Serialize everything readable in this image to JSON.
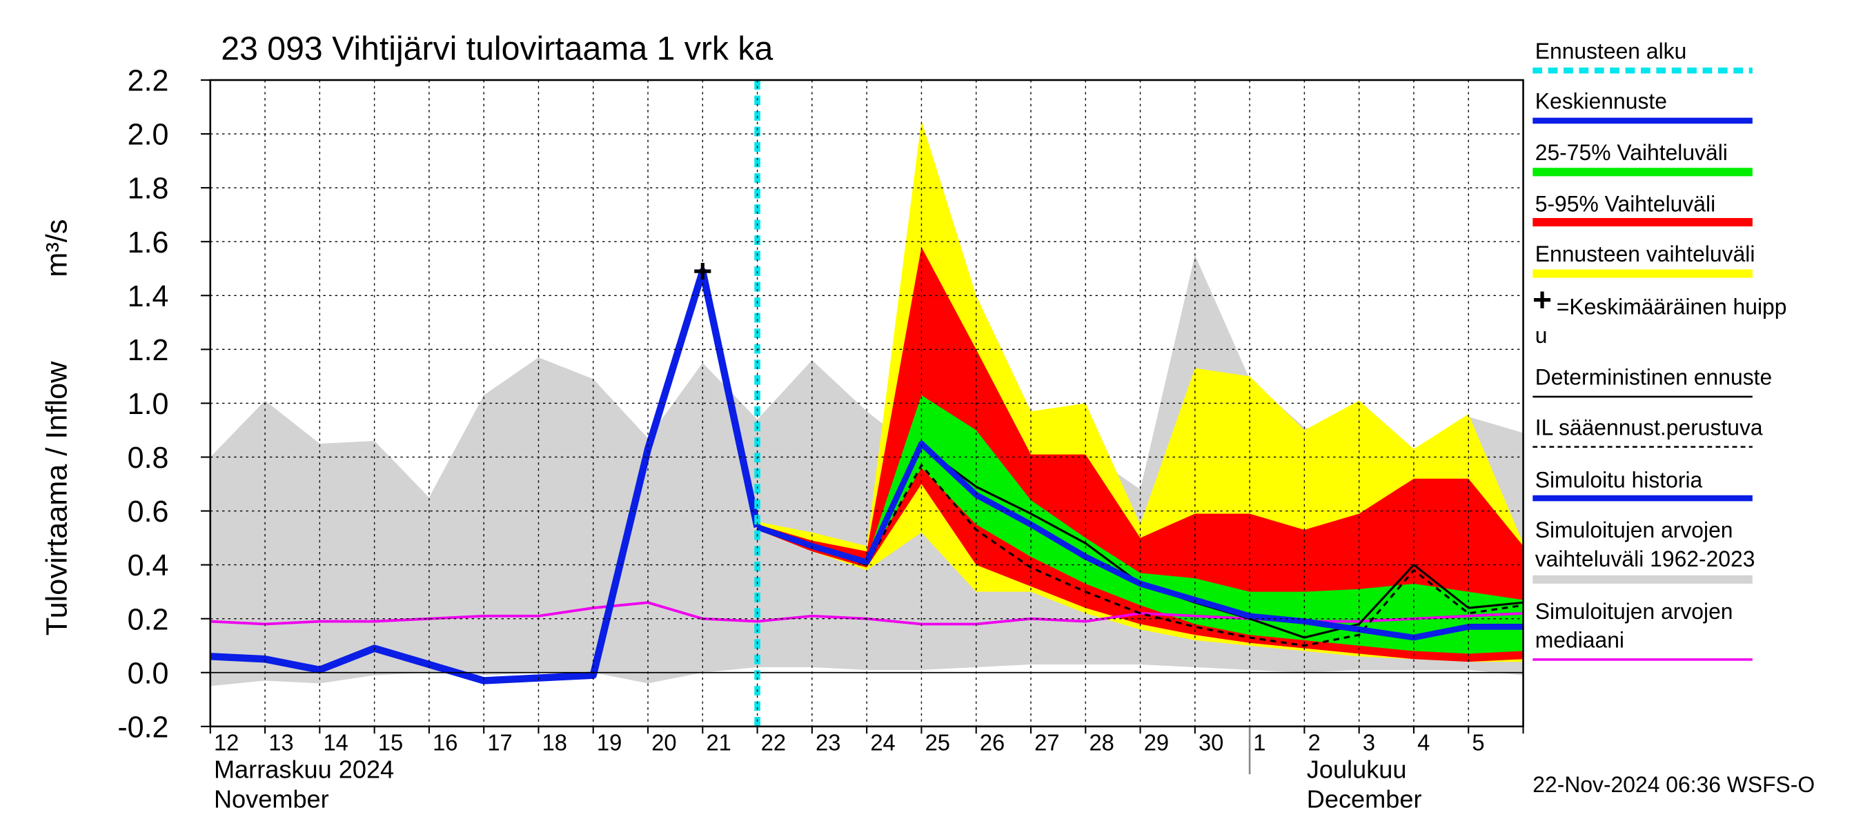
{
  "chart_data": {
    "type": "line",
    "title": "23 093 Vihtijärvi tulovirtaama 1 vrk ka",
    "y_label": "Tulovirtaama / Inflow",
    "y_unit": "m³/s",
    "months": [
      {
        "fi": "Marraskuu 2024",
        "en": "November",
        "x": 0
      },
      {
        "fi": "Joulukuu",
        "en": "December",
        "x": 19
      }
    ],
    "timestamp": "22-Nov-2024 06:36 WSFS-O",
    "categories": [
      "12",
      "13",
      "14",
      "15",
      "16",
      "17",
      "18",
      "19",
      "20",
      "21",
      "22",
      "23",
      "24",
      "25",
      "26",
      "27",
      "28",
      "29",
      "30",
      "1",
      "2",
      "3",
      "4",
      "5"
    ],
    "x": [
      0,
      1,
      2,
      3,
      4,
      5,
      6,
      7,
      8,
      9,
      10,
      11,
      12,
      13,
      14,
      15,
      16,
      17,
      18,
      19,
      20,
      21,
      22,
      23,
      24
    ],
    "xlim": [
      0,
      24
    ],
    "ylim": [
      -0.2,
      2.2
    ],
    "yticks": [
      -0.2,
      {
        "value": 0,
        "label": "0.0"
      },
      0.2,
      0.4,
      0.6,
      0.8,
      {
        "value": 1,
        "label": "1.0"
      },
      1.2,
      1.4,
      1.6,
      1.8,
      {
        "value": 2,
        "label": "2.0"
      },
      2.2
    ],
    "grid": true,
    "forecast_start": {
      "name": "Ennusteen alku",
      "color": "#00e5ee",
      "x": 10
    },
    "peak": {
      "name": "=Keskimääräinen huipp",
      "name2": "u",
      "x": 9,
      "value": 1.49
    },
    "series": [
      {
        "name": "Keskiennuste",
        "color": "#0a1ee6",
        "kind": "line",
        "values": [
          null,
          null,
          null,
          null,
          null,
          null,
          null,
          null,
          null,
          null,
          0.54,
          0.47,
          0.41,
          0.85,
          0.66,
          0.55,
          0.43,
          0.33,
          0.27,
          0.21,
          0.19,
          0.16,
          0.13,
          0.17,
          0.17
        ]
      },
      {
        "name": "25-75% Vaihteluväli",
        "color": "#00ee00",
        "kind": "band",
        "high": [
          null,
          null,
          null,
          null,
          null,
          null,
          null,
          null,
          null,
          null,
          0.54,
          0.48,
          0.42,
          1.03,
          0.9,
          0.64,
          0.5,
          0.37,
          0.35,
          0.3,
          0.3,
          0.31,
          0.33,
          0.3,
          0.27
        ],
        "low": [
          null,
          null,
          null,
          null,
          null,
          null,
          null,
          null,
          null,
          null,
          0.54,
          0.47,
          0.41,
          0.76,
          0.55,
          0.43,
          0.33,
          0.25,
          0.18,
          0.14,
          0.12,
          0.1,
          0.08,
          0.07,
          0.08
        ]
      },
      {
        "name": "5-95% Vaihteluväli",
        "color": "#ff0000",
        "kind": "band",
        "high": [
          null,
          null,
          null,
          null,
          null,
          null,
          null,
          null,
          null,
          null,
          0.55,
          0.49,
          0.45,
          1.58,
          1.2,
          0.81,
          0.81,
          0.5,
          0.59,
          0.59,
          0.53,
          0.59,
          0.72,
          0.72,
          0.47
        ],
        "low": [
          null,
          null,
          null,
          null,
          null,
          null,
          null,
          null,
          null,
          null,
          0.53,
          0.45,
          0.39,
          0.7,
          0.4,
          0.32,
          0.24,
          0.18,
          0.14,
          0.11,
          0.09,
          0.07,
          0.05,
          0.04,
          0.05
        ]
      },
      {
        "name": "Ennusteen vaihteluväli",
        "color": "#ffff00",
        "kind": "band",
        "high": [
          null,
          null,
          null,
          null,
          null,
          null,
          null,
          null,
          null,
          null,
          0.56,
          0.52,
          0.47,
          2.05,
          1.4,
          0.97,
          1.0,
          0.55,
          1.13,
          1.1,
          0.9,
          1.01,
          0.83,
          0.96,
          0.48
        ],
        "low": [
          null,
          null,
          null,
          null,
          null,
          null,
          null,
          null,
          null,
          null,
          0.53,
          0.45,
          0.38,
          0.52,
          0.3,
          0.3,
          0.22,
          0.16,
          0.12,
          0.1,
          0.08,
          0.06,
          0.05,
          0.04,
          0.04
        ]
      },
      {
        "name": "Deterministinen ennuste",
        "color": "#000000",
        "kind": "line",
        "values": [
          null,
          null,
          null,
          null,
          null,
          null,
          null,
          null,
          null,
          null,
          0.54,
          0.47,
          0.41,
          0.84,
          0.69,
          0.59,
          0.48,
          0.33,
          0.26,
          0.2,
          0.13,
          0.18,
          0.4,
          0.24,
          0.26
        ]
      },
      {
        "name": "IL sääennust.perustuva",
        "color": "#000000",
        "kind": "line",
        "dash": true,
        "values": [
          null,
          null,
          null,
          null,
          null,
          null,
          null,
          null,
          null,
          null,
          0.54,
          0.47,
          0.4,
          0.77,
          0.53,
          0.39,
          0.3,
          0.22,
          0.17,
          0.13,
          0.1,
          0.14,
          0.38,
          0.22,
          0.25
        ]
      },
      {
        "name": "Simuloitu historia",
        "color": "#0a1ee6",
        "kind": "line",
        "values": [
          0.06,
          0.05,
          0.01,
          0.09,
          0.03,
          -0.03,
          -0.02,
          -0.01,
          0.83,
          1.49,
          0.54,
          null,
          null,
          null,
          null,
          null,
          null,
          null,
          null,
          null,
          null,
          null,
          null,
          null,
          null
        ]
      },
      {
        "name": "Simuloitujen arvojen",
        "name2": "vaihteluväli 1962-2023",
        "color": "#d3d3d3",
        "kind": "band",
        "high": [
          0.8,
          1.01,
          0.85,
          0.86,
          0.65,
          1.03,
          1.17,
          1.09,
          0.87,
          1.15,
          0.94,
          1.16,
          0.97,
          0.81,
          0.81,
          0.82,
          0.82,
          0.68,
          1.55,
          1.09,
          0.91,
          0.87,
          0.8,
          0.95,
          0.89
        ],
        "low": [
          -0.05,
          -0.03,
          -0.04,
          -0.01,
          0,
          -0.01,
          0,
          0,
          -0.04,
          0,
          0.02,
          0.02,
          0.01,
          0.01,
          0.02,
          0.03,
          0.03,
          0.03,
          0.02,
          0.01,
          0,
          0.01,
          0.01,
          0.01,
          -0.01
        ]
      },
      {
        "name": "Simuloitujen arvojen",
        "name2": "mediaani",
        "color": "#ee00ee",
        "kind": "line",
        "values": [
          0.19,
          0.18,
          0.19,
          0.19,
          0.2,
          0.21,
          0.21,
          0.24,
          0.26,
          0.2,
          0.19,
          0.21,
          0.2,
          0.18,
          0.18,
          0.2,
          0.19,
          0.22,
          0.21,
          0.2,
          0.19,
          0.19,
          0.2,
          0.21,
          0.22
        ]
      }
    ]
  }
}
